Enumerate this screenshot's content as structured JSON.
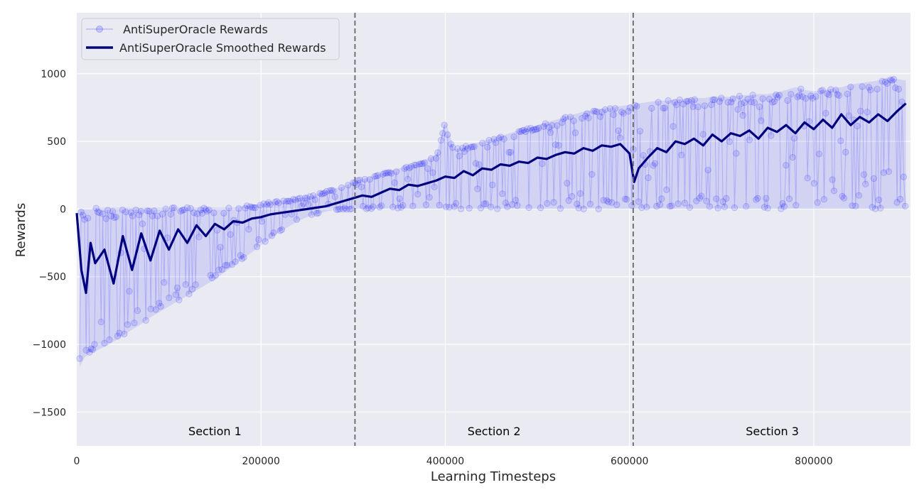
{
  "chart_data": {
    "type": "line",
    "xlabel": "Learning Timesteps",
    "ylabel": "Rewards",
    "xlim": [
      0,
      905000
    ],
    "ylim": [
      -1750,
      1450
    ],
    "xticks": [
      0,
      200000,
      400000,
      600000,
      800000
    ],
    "xtick_labels": [
      "0",
      "200000",
      "400000",
      "600000",
      "800000"
    ],
    "yticks": [
      -1500,
      -1000,
      -500,
      0,
      500,
      1000
    ],
    "ytick_labels": [
      "−1500",
      "−1000",
      "−500",
      "0",
      "500",
      "1000"
    ],
    "grid": true,
    "legend_position": "top-left",
    "section_boundaries": [
      302000,
      604000
    ],
    "sections": [
      {
        "label": "Section 1",
        "x": 150000
      },
      {
        "label": "Section 2",
        "x": 453000
      },
      {
        "label": "Section 3",
        "x": 755000
      }
    ],
    "series": [
      {
        "name": " AntiSuperOracle Rewards",
        "style": "markers",
        "x": [
          3000,
          8000,
          15000,
          20000,
          30000,
          40000,
          50000,
          60000,
          70000,
          80000,
          90000,
          100000,
          110000,
          120000,
          130000,
          140000,
          150000,
          160000,
          170000,
          180000,
          190000,
          200000,
          210000,
          220000,
          230000,
          240000,
          250000,
          260000,
          270000,
          280000,
          290000,
          300000,
          310000,
          320000,
          330000,
          340000,
          350000,
          360000,
          370000,
          380000,
          390000,
          400000,
          410000,
          420000,
          430000,
          440000,
          450000,
          460000,
          470000,
          480000,
          490000,
          500000,
          510000,
          520000,
          530000,
          540000,
          550000,
          560000,
          570000,
          580000,
          590000,
          600000,
          610000,
          620000,
          630000,
          640000,
          650000,
          660000,
          670000,
          680000,
          690000,
          700000,
          710000,
          720000,
          730000,
          740000,
          750000,
          760000,
          770000,
          780000,
          790000,
          800000,
          810000,
          820000,
          830000,
          840000,
          850000,
          860000,
          870000,
          880000,
          890000,
          900000
        ],
        "min": [
          -1170,
          -1100,
          -1060,
          -1050,
          -1020,
          -980,
          -940,
          -890,
          -850,
          -800,
          -760,
          -720,
          -680,
          -640,
          -600,
          -560,
          -520,
          -470,
          -420,
          -370,
          -320,
          -270,
          -220,
          -170,
          -130,
          -90,
          -60,
          -40,
          -20,
          -5,
          -5,
          0,
          0,
          0,
          0,
          0,
          0,
          0,
          0,
          0,
          0,
          0,
          0,
          0,
          0,
          0,
          0,
          0,
          0,
          0,
          0,
          0,
          0,
          0,
          0,
          0,
          0,
          0,
          0,
          0,
          0,
          0,
          0,
          0,
          0,
          0,
          0,
          0,
          0,
          0,
          0,
          0,
          0,
          0,
          0,
          0,
          0,
          0,
          0,
          0,
          0,
          0,
          0,
          0,
          0,
          0,
          0,
          0,
          0,
          0,
          0,
          0
        ],
        "max": [
          0,
          0,
          0,
          10,
          10,
          10,
          10,
          10,
          10,
          10,
          10,
          10,
          10,
          10,
          10,
          10,
          10,
          10,
          10,
          20,
          30,
          40,
          50,
          60,
          70,
          80,
          90,
          110,
          130,
          150,
          170,
          200,
          220,
          240,
          260,
          280,
          300,
          320,
          340,
          370,
          400,
          650,
          440,
          460,
          480,
          500,
          520,
          540,
          560,
          580,
          600,
          620,
          640,
          660,
          680,
          700,
          720,
          730,
          740,
          750,
          760,
          770,
          780,
          790,
          800,
          800,
          810,
          810,
          820,
          820,
          830,
          830,
          830,
          840,
          840,
          850,
          850,
          860,
          880,
          900,
          880,
          870,
          880,
          890,
          900,
          920,
          930,
          940,
          950,
          970,
          960,
          950
        ]
      },
      {
        "name": "AntiSuperOracle Smoothed Rewards",
        "style": "line",
        "x": [
          0,
          5000,
          10000,
          15000,
          20000,
          30000,
          40000,
          50000,
          60000,
          70000,
          80000,
          90000,
          100000,
          110000,
          120000,
          130000,
          140000,
          150000,
          160000,
          170000,
          180000,
          190000,
          200000,
          210000,
          220000,
          230000,
          240000,
          250000,
          260000,
          270000,
          280000,
          290000,
          300000,
          310000,
          320000,
          330000,
          340000,
          350000,
          360000,
          370000,
          380000,
          390000,
          400000,
          410000,
          420000,
          430000,
          440000,
          450000,
          460000,
          470000,
          480000,
          490000,
          500000,
          510000,
          520000,
          530000,
          540000,
          550000,
          560000,
          570000,
          580000,
          590000,
          600000,
          605000,
          610000,
          620000,
          630000,
          640000,
          650000,
          660000,
          670000,
          680000,
          690000,
          700000,
          710000,
          720000,
          730000,
          740000,
          750000,
          760000,
          770000,
          780000,
          790000,
          800000,
          810000,
          820000,
          830000,
          840000,
          850000,
          860000,
          870000,
          880000,
          890000,
          900000
        ],
        "y": [
          -30,
          -450,
          -620,
          -250,
          -400,
          -300,
          -550,
          -200,
          -450,
          -180,
          -380,
          -160,
          -300,
          -150,
          -250,
          -120,
          -200,
          -110,
          -150,
          -90,
          -100,
          -70,
          -60,
          -40,
          -30,
          -20,
          -10,
          0,
          10,
          20,
          40,
          60,
          80,
          100,
          90,
          120,
          150,
          140,
          180,
          170,
          190,
          210,
          240,
          230,
          280,
          250,
          300,
          290,
          330,
          320,
          350,
          340,
          380,
          370,
          400,
          420,
          410,
          450,
          430,
          470,
          460,
          480,
          410,
          200,
          300,
          380,
          450,
          420,
          500,
          480,
          520,
          470,
          550,
          500,
          560,
          540,
          580,
          520,
          600,
          570,
          620,
          560,
          640,
          590,
          660,
          600,
          700,
          620,
          680,
          640,
          700,
          650,
          720,
          780
        ],
        "color": "#00007f"
      }
    ]
  }
}
